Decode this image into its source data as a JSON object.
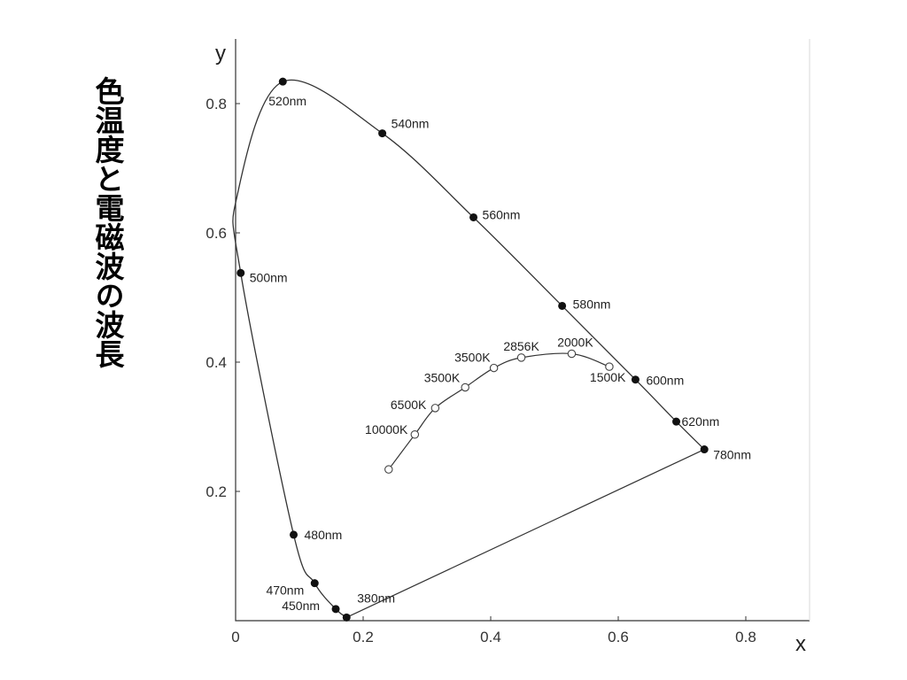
{
  "slide": {
    "side_title": "色温度と電磁波の波長"
  },
  "chart_data": {
    "type": "scatter",
    "title": "",
    "xlabel": "x",
    "ylabel": "y",
    "xlim": [
      0,
      0.9
    ],
    "ylim": [
      0,
      0.9
    ],
    "x_ticks": [
      {
        "value": 0,
        "label": "0"
      },
      {
        "value": 0.2,
        "label": "0.2"
      },
      {
        "value": 0.4,
        "label": "0.4"
      },
      {
        "value": 0.6,
        "label": "0.6"
      },
      {
        "value": 0.8,
        "label": "0.8"
      }
    ],
    "y_ticks": [
      {
        "value": 0.2,
        "label": "0.2"
      },
      {
        "value": 0.4,
        "label": "0.4"
      },
      {
        "value": 0.6,
        "label": "0.6"
      },
      {
        "value": 0.8,
        "label": "0.8"
      }
    ],
    "grid": false,
    "series": [
      {
        "points": [
          {
            "label": "380nm",
            "x": 0.174,
            "y": 0.005
          },
          {
            "label": "450nm",
            "x": 0.157,
            "y": 0.018
          },
          {
            "label": "470nm",
            "x": 0.124,
            "y": 0.058
          },
          {
            "label": "480nm",
            "x": 0.091,
            "y": 0.133
          },
          {
            "label": "500nm",
            "x": 0.008,
            "y": 0.538
          },
          {
            "label": "520nm",
            "x": 0.074,
            "y": 0.834
          },
          {
            "label": "540nm",
            "x": 0.23,
            "y": 0.754
          },
          {
            "label": "560nm",
            "x": 0.373,
            "y": 0.624
          },
          {
            "label": "580nm",
            "x": 0.512,
            "y": 0.487
          },
          {
            "label": "600nm",
            "x": 0.627,
            "y": 0.373
          },
          {
            "label": "620nm",
            "x": 0.691,
            "y": 0.308
          },
          {
            "label": "780nm",
            "x": 0.735,
            "y": 0.265
          }
        ]
      },
      {
        "points": [
          {
            "label": "",
            "x": 0.24,
            "y": 0.234
          },
          {
            "label": "10000K",
            "x": 0.281,
            "y": 0.288
          },
          {
            "label": "6500K",
            "x": 0.313,
            "y": 0.329
          },
          {
            "label": "3500K",
            "x": 0.36,
            "y": 0.361
          },
          {
            "label": "3500K",
            "x": 0.405,
            "y": 0.391
          },
          {
            "label": "2856K",
            "x": 0.448,
            "y": 0.407
          },
          {
            "label": "2000K",
            "x": 0.527,
            "y": 0.413
          },
          {
            "label": "1500K",
            "x": 0.586,
            "y": 0.393
          }
        ]
      }
    ]
  }
}
